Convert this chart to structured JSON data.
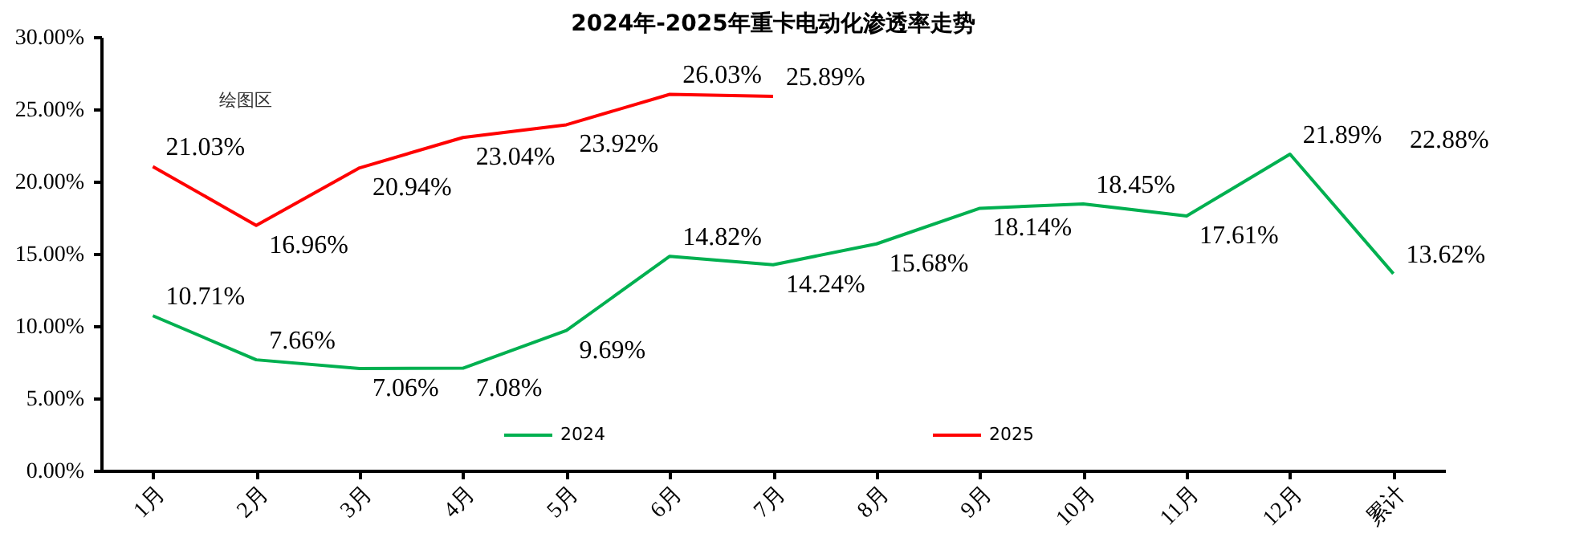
{
  "chart_data": {
    "type": "line",
    "title": "2024年-2025年重卡电动化渗透率走势",
    "categories": [
      "1月",
      "2月",
      "3月",
      "4月",
      "5月",
      "6月",
      "7月",
      "8月",
      "9月",
      "10月",
      "11月",
      "12月",
      "累计"
    ],
    "series": [
      {
        "name": "2024",
        "color": "#00b050",
        "values": [
          10.71,
          7.66,
          7.06,
          7.08,
          9.69,
          14.82,
          14.24,
          15.68,
          18.14,
          18.45,
          17.61,
          21.89,
          13.62
        ],
        "value_labels": [
          "10.71%",
          "7.66%",
          "7.06%",
          "7.08%",
          "9.69%",
          "14.82%",
          "14.24%",
          "15.68%",
          "18.14%",
          "18.45%",
          "17.61%",
          "21.89%",
          "13.62%"
        ]
      },
      {
        "name": "2025",
        "color": "#ff0000",
        "values": [
          21.03,
          16.96,
          20.94,
          23.04,
          23.92,
          26.03,
          25.89,
          null,
          null,
          null,
          null,
          null,
          null
        ],
        "value_labels": [
          "21.03%",
          "16.96%",
          "20.94%",
          "23.04%",
          "23.92%",
          "26.03%",
          "25.89%",
          null,
          null,
          null,
          null,
          null,
          null
        ]
      }
    ],
    "ylim": [
      0,
      30
    ],
    "yticks": [
      {
        "value": 0,
        "label": "0.00%"
      },
      {
        "value": 5,
        "label": "5.00%"
      },
      {
        "value": 10,
        "label": "10.00%"
      },
      {
        "value": 15,
        "label": "15.00%"
      },
      {
        "value": 20,
        "label": "20.00%"
      },
      {
        "value": 25,
        "label": "25.00%"
      },
      {
        "value": 30,
        "label": "30.00%"
      }
    ],
    "annotations": [
      "绘图区",
      "22.88%"
    ],
    "grid": false,
    "legend": "bottom",
    "marker": "none",
    "line_style": "solid"
  }
}
